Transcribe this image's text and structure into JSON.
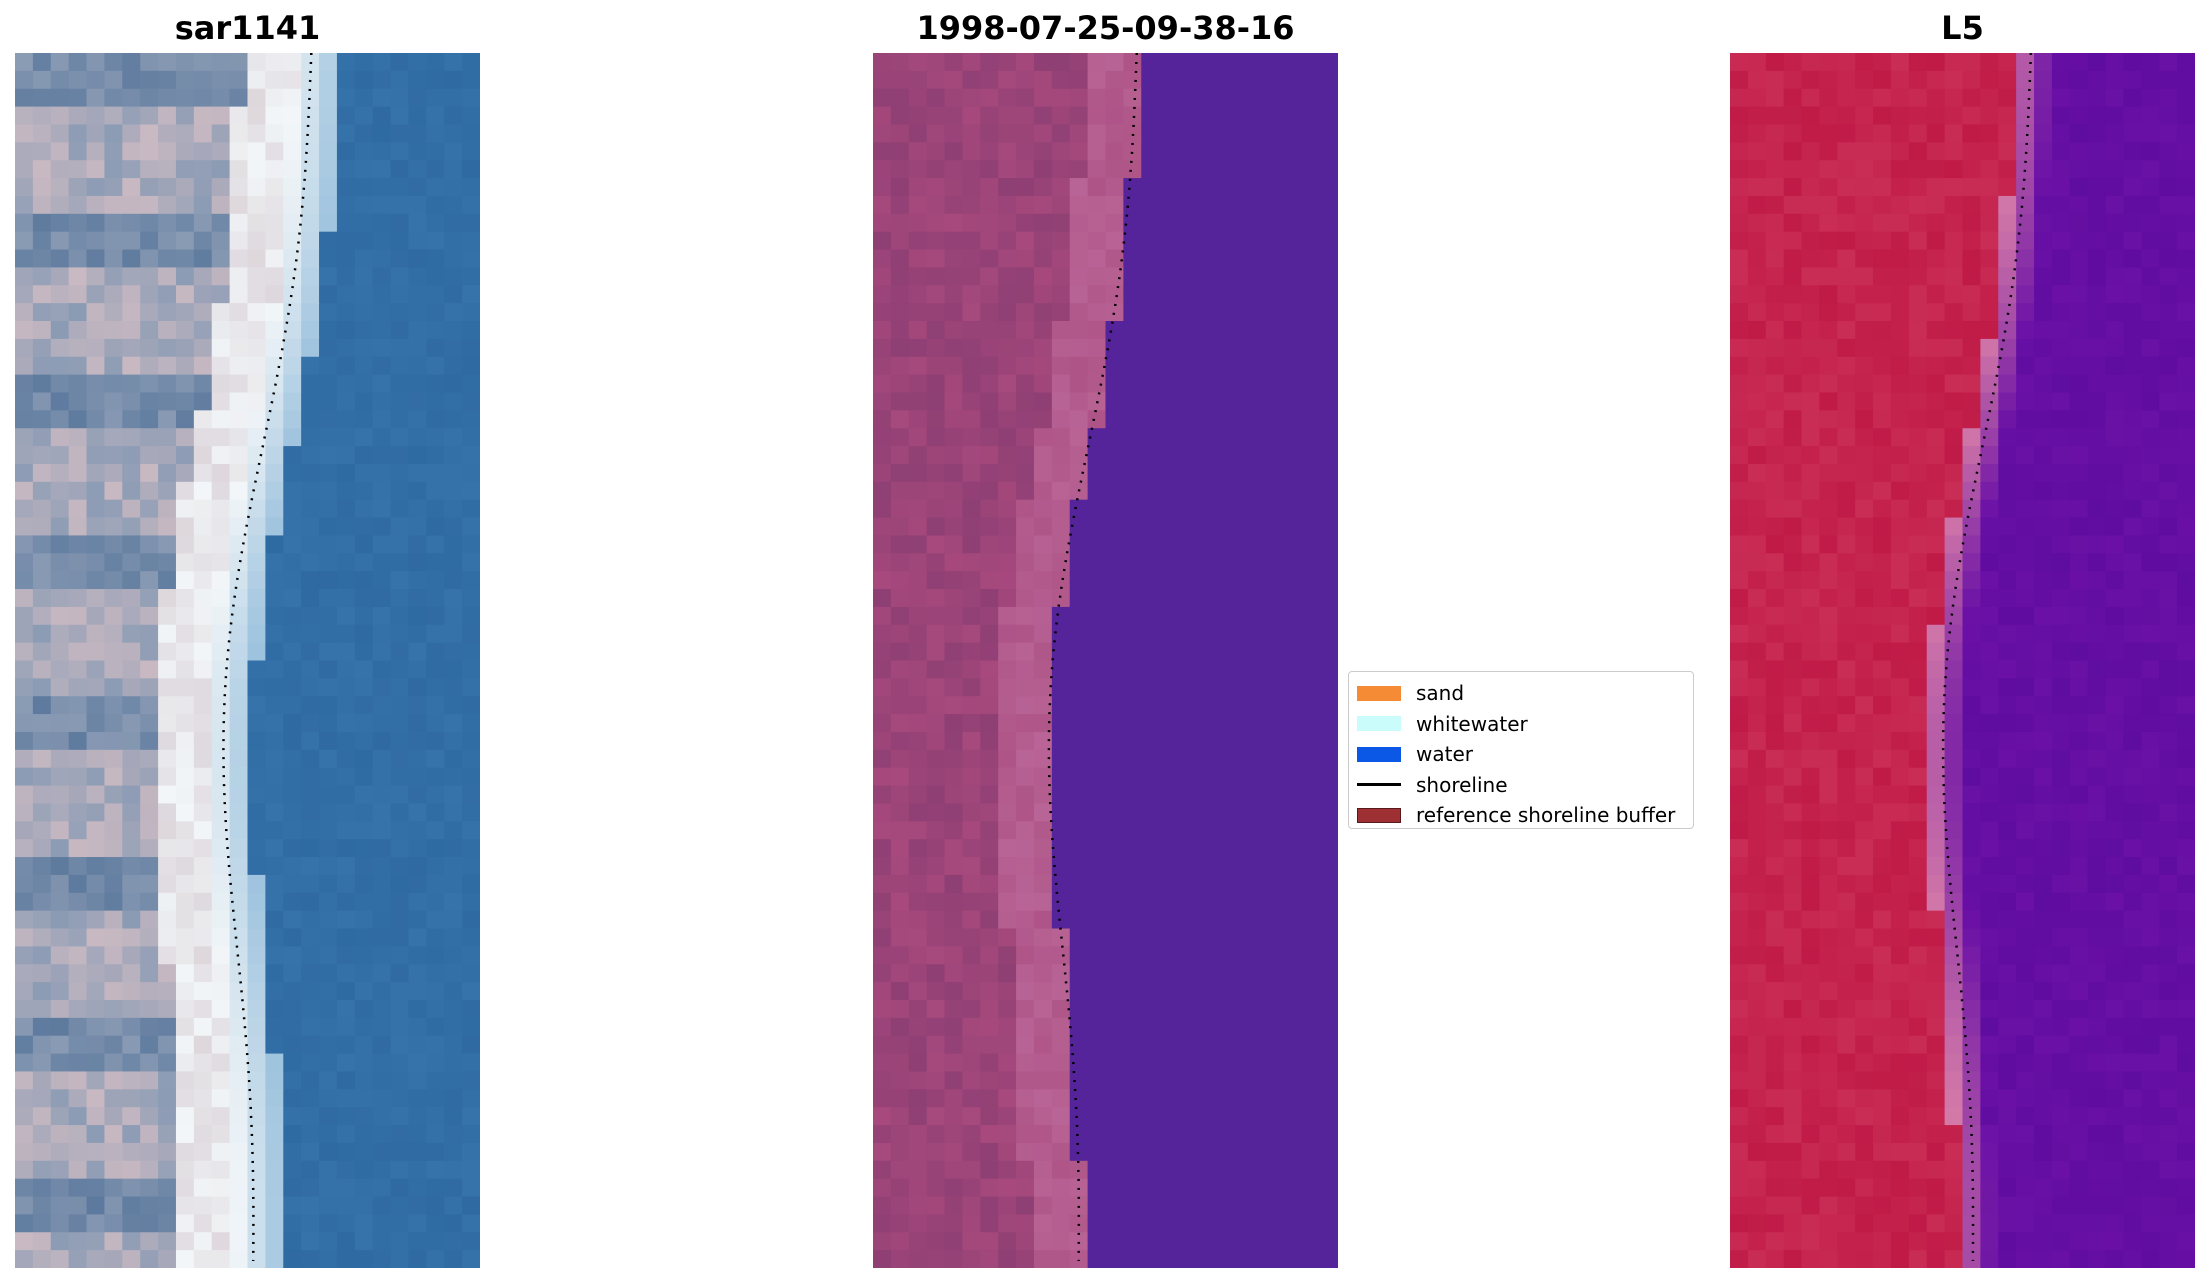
{
  "panels": [
    {
      "title": "sar1141",
      "style": "rgb",
      "colors": {
        "land_a": "#8a9bb4",
        "land_b": "#c9b9c2",
        "land_c": "#5d7a9e",
        "foam": "#f2f6f8",
        "water": "#2f6aa3",
        "water_alt": "#3673aa"
      }
    },
    {
      "title": "1998-07-25-09-38-16",
      "style": "classified",
      "colors": {
        "land_a": "#8e3f74",
        "land_b": "#a7497d",
        "land_c": "#b96496",
        "water": "#55239a"
      }
    },
    {
      "title": "L5",
      "style": "index",
      "colors": {
        "land_a": "#c01a47",
        "land_b": "#c92d55",
        "transition": "#d47aa8",
        "water": "#6a10a6",
        "water_alt": "#5f0ca0"
      }
    }
  ],
  "legend": {
    "items": [
      {
        "label": "sand",
        "type": "patch",
        "color": "#f68b35"
      },
      {
        "label": "whitewater",
        "type": "patch",
        "color": "#c9fcfa"
      },
      {
        "label": "water",
        "type": "patch",
        "color": "#0b57e6"
      },
      {
        "label": "shoreline",
        "type": "line",
        "color": "#000000"
      },
      {
        "label": "reference shoreline buffer",
        "type": "patch",
        "color": "#9e3034",
        "edge": "#5a1a1c"
      }
    ]
  },
  "shoreline_color": "#000000"
}
